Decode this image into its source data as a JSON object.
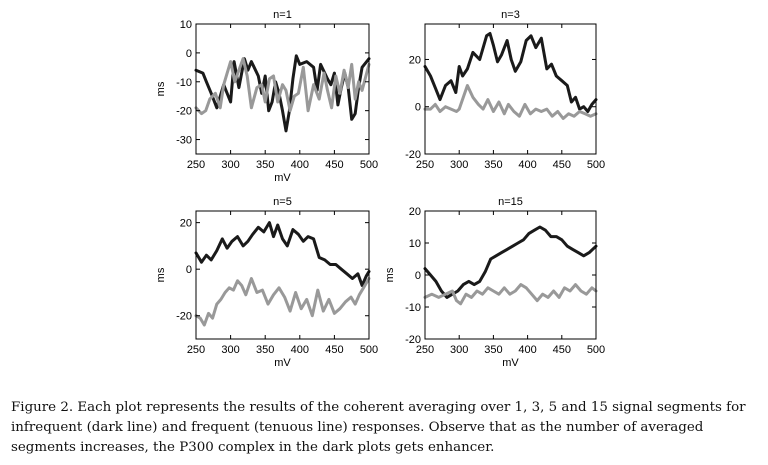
{
  "chart_data": [
    {
      "type": "line",
      "title": "n=1",
      "xlabel": "mV",
      "ylabel": "ms",
      "xlim": [
        250,
        500
      ],
      "ylim": [
        -35,
        10
      ],
      "xticks": [
        250,
        300,
        350,
        400,
        450,
        500
      ],
      "yticks": [
        10,
        0,
        -10,
        -20,
        -30
      ],
      "grid": false,
      "series": [
        {
          "color": "#1a1a1a",
          "x": [
            250,
            260,
            265,
            272,
            280,
            290,
            300,
            305,
            312,
            320,
            325,
            330,
            340,
            345,
            350,
            355,
            360,
            365,
            370,
            375,
            380,
            385,
            390,
            395,
            400,
            410,
            420,
            425,
            430,
            440,
            445,
            450,
            455,
            460,
            465,
            470,
            475,
            480,
            485,
            490,
            500
          ],
          "y": [
            -6,
            -7,
            -10,
            -14,
            -19,
            -11,
            -17,
            -3,
            -12,
            -2,
            -6,
            -3,
            -8,
            -14,
            -8,
            -20,
            -17,
            -10,
            -14,
            -20,
            -27,
            -20,
            -9,
            -1,
            -4,
            -3,
            -5,
            -13,
            -4,
            -9,
            -11,
            -7,
            -18,
            -12,
            -7,
            -12,
            -23,
            -21,
            -12,
            -5,
            -2
          ]
        },
        {
          "color": "#999999",
          "x": [
            250,
            258,
            264,
            270,
            278,
            285,
            290,
            300,
            306,
            312,
            318,
            324,
            330,
            338,
            345,
            350,
            356,
            362,
            368,
            375,
            380,
            386,
            392,
            398,
            405,
            412,
            420,
            428,
            435,
            440,
            446,
            452,
            458,
            464,
            470,
            475,
            480,
            485,
            490,
            500
          ],
          "y": [
            -19,
            -21,
            -20,
            -16,
            -14,
            -19,
            -11,
            -3,
            -10,
            -6,
            -2,
            -8,
            -19,
            -12,
            -11,
            -17,
            -9,
            -8,
            -17,
            -11,
            -13,
            -20,
            -15,
            -14,
            -5,
            -20,
            -11,
            -16,
            -7,
            -13,
            -19,
            -8,
            -14,
            -6,
            -12,
            -4,
            -16,
            -10,
            -13,
            -4
          ]
        }
      ]
    },
    {
      "type": "line",
      "title": "n=3",
      "xlabel": "",
      "ylabel": "",
      "xlim": [
        250,
        500
      ],
      "ylim": [
        -20,
        35
      ],
      "xticks": [
        250,
        300,
        350,
        400,
        450,
        500
      ],
      "yticks": [
        20,
        0,
        -20
      ],
      "grid": false,
      "series": [
        {
          "color": "#1a1a1a",
          "x": [
            250,
            258,
            265,
            272,
            280,
            288,
            295,
            300,
            305,
            312,
            320,
            330,
            340,
            345,
            350,
            356,
            362,
            370,
            376,
            382,
            390,
            398,
            405,
            412,
            420,
            428,
            435,
            442,
            450,
            458,
            464,
            470,
            476,
            482,
            488,
            494,
            500
          ],
          "y": [
            17,
            13,
            8,
            3,
            9,
            11,
            6,
            17,
            13,
            16,
            23,
            20,
            30,
            31,
            26,
            19,
            22,
            28,
            20,
            15,
            19,
            28,
            30,
            25,
            29,
            16,
            18,
            13,
            11,
            9,
            2,
            4,
            -1,
            0,
            -2,
            1,
            3
          ]
        },
        {
          "color": "#999999",
          "x": [
            250,
            258,
            265,
            272,
            280,
            288,
            296,
            300,
            306,
            312,
            320,
            328,
            335,
            342,
            350,
            358,
            366,
            372,
            380,
            388,
            396,
            404,
            412,
            420,
            428,
            436,
            444,
            452,
            460,
            468,
            476,
            484,
            492,
            500
          ],
          "y": [
            -1,
            -1,
            1,
            -2,
            0,
            -1,
            -2,
            -1,
            4,
            9,
            4,
            1,
            -1,
            3,
            -2,
            2,
            -3,
            1,
            -2,
            -4,
            1,
            -3,
            -1,
            -2,
            -1,
            -4,
            -2,
            -5,
            -3,
            -4,
            -2,
            -3,
            -4,
            -3
          ]
        }
      ]
    },
    {
      "type": "line",
      "title": "n=5",
      "xlabel": "mV",
      "ylabel": "ms",
      "xlim": [
        250,
        500
      ],
      "ylim": [
        -30,
        25
      ],
      "xticks": [
        250,
        300,
        350,
        400,
        450,
        500
      ],
      "yticks": [
        20,
        0,
        -20
      ],
      "grid": false,
      "series": [
        {
          "color": "#1a1a1a",
          "x": [
            250,
            258,
            265,
            272,
            280,
            288,
            295,
            302,
            310,
            318,
            325,
            332,
            340,
            348,
            356,
            362,
            368,
            375,
            382,
            390,
            398,
            405,
            412,
            420,
            428,
            436,
            444,
            452,
            460,
            468,
            476,
            484,
            490,
            496,
            500
          ],
          "y": [
            7,
            3,
            6,
            4,
            8,
            13,
            9,
            12,
            14,
            10,
            12,
            15,
            18,
            16,
            20,
            14,
            19,
            13,
            10,
            17,
            15,
            12,
            14,
            13,
            5,
            4,
            2,
            2,
            0,
            -2,
            -4,
            -2,
            -7,
            -3,
            -1
          ]
        },
        {
          "color": "#999999",
          "x": [
            250,
            256,
            262,
            268,
            274,
            280,
            286,
            292,
            298,
            304,
            310,
            316,
            322,
            330,
            338,
            346,
            354,
            362,
            370,
            378,
            386,
            394,
            402,
            410,
            418,
            426,
            434,
            442,
            450,
            458,
            466,
            474,
            480,
            486,
            492,
            500
          ],
          "y": [
            -20,
            -21,
            -24,
            -19,
            -21,
            -15,
            -13,
            -10,
            -8,
            -9,
            -5,
            -7,
            -11,
            -4,
            -10,
            -9,
            -15,
            -11,
            -8,
            -12,
            -18,
            -10,
            -17,
            -13,
            -20,
            -9,
            -18,
            -13,
            -19,
            -17,
            -14,
            -12,
            -15,
            -11,
            -8,
            -4
          ]
        }
      ]
    },
    {
      "type": "line",
      "title": "n=15",
      "xlabel": "mV",
      "ylabel": "ms",
      "xlim": [
        250,
        500
      ],
      "ylim": [
        -20,
        20
      ],
      "xticks": [
        250,
        300,
        350,
        400,
        450,
        500
      ],
      "yticks": [
        20,
        10,
        0,
        -10,
        -20
      ],
      "grid": false,
      "series": [
        {
          "color": "#1a1a1a",
          "x": [
            250,
            258,
            266,
            274,
            282,
            290,
            298,
            306,
            314,
            322,
            330,
            338,
            346,
            354,
            362,
            370,
            378,
            386,
            394,
            402,
            410,
            418,
            426,
            434,
            442,
            450,
            458,
            466,
            474,
            482,
            490,
            500
          ],
          "y": [
            2,
            0,
            -2,
            -5,
            -7,
            -6,
            -5,
            -3,
            -2,
            -3,
            -2,
            1,
            5,
            6,
            7,
            8,
            9,
            10,
            11,
            13,
            14,
            15,
            14,
            12,
            12,
            11,
            9,
            8,
            7,
            6,
            7,
            9
          ]
        },
        {
          "color": "#999999",
          "x": [
            250,
            260,
            270,
            280,
            290,
            296,
            302,
            310,
            318,
            326,
            334,
            342,
            350,
            358,
            366,
            374,
            382,
            390,
            398,
            406,
            414,
            422,
            430,
            438,
            446,
            454,
            462,
            470,
            478,
            486,
            494,
            500
          ],
          "y": [
            -7,
            -6,
            -7,
            -6,
            -5,
            -8,
            -9,
            -6,
            -7,
            -5,
            -6,
            -4,
            -5,
            -6,
            -4,
            -6,
            -5,
            -3,
            -4,
            -6,
            -8,
            -6,
            -7,
            -5,
            -7,
            -4,
            -5,
            -3,
            -5,
            -6,
            -4,
            -5
          ]
        }
      ]
    }
  ],
  "caption": "Figure 2. Each plot represents the results of the coherent averaging over 1, 3, 5 and 15 signal segments for infrequent (dark line) and frequent (tenuous line) responses. Observe that as the number of averaged segments increases, the P300 complex in the dark plots gets enhancer."
}
